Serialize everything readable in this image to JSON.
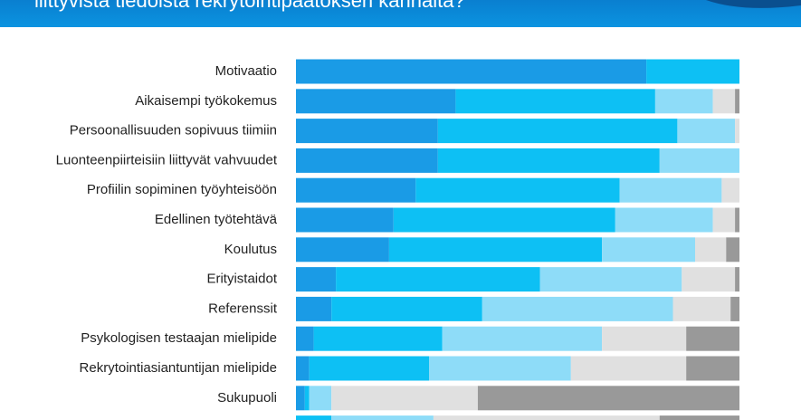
{
  "chart_data": {
    "type": "stacked-bar-horizontal",
    "title": "liittyvistä tiedoista rekrytointipäätöksen kannalta?",
    "categories": [
      "Motivaatio",
      "Aikaisempi työkokemus",
      "Persoonallisuuden sopivuus tiimiin",
      "Luonteenpiirteisiin liittyvät vahvuudet",
      "Profiilin sopiminen työyhteisöön",
      "Edellinen työtehtävä",
      "Koulutus",
      "Erityistaidot",
      "Referenssit",
      "Psykologisen testaajan mielipide",
      "Rekrytointiasiantuntijan mielipide",
      "Sukupuoli",
      null
    ],
    "xlim": [
      0,
      100
    ],
    "series": [
      {
        "color": "#1a9be6",
        "values": [
          79,
          36,
          32,
          32,
          27,
          22,
          21,
          9,
          8,
          4,
          3,
          2,
          0
        ]
      },
      {
        "color": "#0dc0f4",
        "values": [
          21,
          45,
          54,
          50,
          46,
          50,
          48,
          46,
          34,
          29,
          27,
          1,
          8
        ]
      },
      {
        "color": "#8edcf8",
        "values": [
          0,
          13,
          13,
          18,
          23,
          22,
          21,
          32,
          43,
          36,
          32,
          5,
          23
        ]
      },
      {
        "color": "#e0e0e0",
        "values": [
          0,
          5,
          1,
          0,
          4,
          5,
          7,
          12,
          13,
          19,
          26,
          33,
          51
        ]
      },
      {
        "color": "#999999",
        "values": [
          0,
          1,
          0,
          0,
          0,
          1,
          3,
          1,
          2,
          12,
          12,
          59,
          18
        ]
      }
    ]
  }
}
